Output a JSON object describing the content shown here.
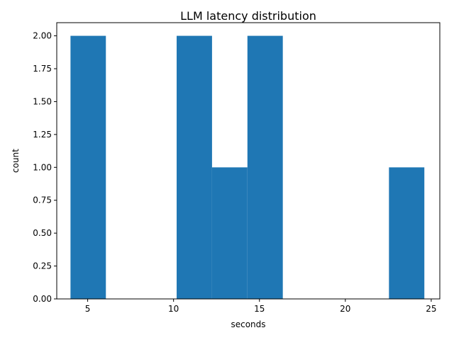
{
  "chart_data": {
    "type": "bar",
    "title": "LLM latency distribution",
    "xlabel": "seconds",
    "ylabel": "count",
    "xlim": [
      3.2,
      25.5
    ],
    "ylim": [
      0,
      2.1
    ],
    "xticks": [
      5,
      10,
      15,
      20,
      25
    ],
    "yticks": [
      "0.00",
      "0.25",
      "0.50",
      "0.75",
      "1.00",
      "1.25",
      "1.50",
      "1.75",
      "2.00"
    ],
    "grid": false,
    "legend": "none",
    "bar_color": "#1f77b4",
    "bins": [
      {
        "x0": 4.0,
        "x1": 6.06,
        "count": 2
      },
      {
        "x0": 6.06,
        "x1": 8.12,
        "count": 0
      },
      {
        "x0": 8.12,
        "x1": 10.18,
        "count": 0
      },
      {
        "x0": 10.18,
        "x1": 12.24,
        "count": 2
      },
      {
        "x0": 12.24,
        "x1": 14.3,
        "count": 1
      },
      {
        "x0": 14.3,
        "x1": 16.36,
        "count": 2
      },
      {
        "x0": 16.36,
        "x1": 18.42,
        "count": 0
      },
      {
        "x0": 18.42,
        "x1": 20.48,
        "count": 0
      },
      {
        "x0": 20.48,
        "x1": 22.54,
        "count": 0
      },
      {
        "x0": 22.54,
        "x1": 24.6,
        "count": 1
      }
    ]
  }
}
